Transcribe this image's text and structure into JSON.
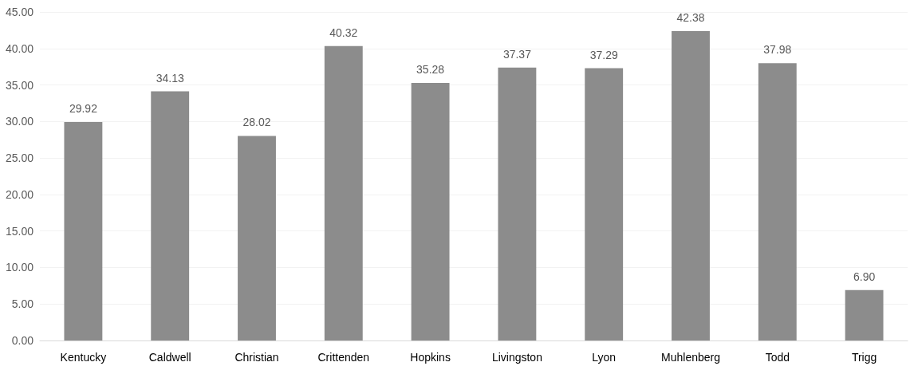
{
  "chart_data": {
    "type": "bar",
    "categories": [
      "Kentucky",
      "Caldwell",
      "Christian",
      "Crittenden",
      "Hopkins",
      "Livingston",
      "Lyon",
      "Muhlenberg",
      "Todd",
      "Trigg"
    ],
    "values": [
      29.92,
      34.13,
      28.02,
      40.32,
      35.28,
      37.37,
      37.29,
      42.38,
      37.98,
      6.9
    ],
    "value_labels": [
      "29.92",
      "34.13",
      "28.02",
      "40.32",
      "35.28",
      "37.37",
      "37.29",
      "42.38",
      "37.98",
      "6.90"
    ],
    "color": "#8c8c8c",
    "ylim": [
      0,
      45
    ],
    "yticks": [
      {
        "value": 0,
        "label": "0.00"
      },
      {
        "value": 5,
        "label": "5.00"
      },
      {
        "value": 10,
        "label": "10.00"
      },
      {
        "value": 15,
        "label": "15.00"
      },
      {
        "value": 20,
        "label": "20.00"
      },
      {
        "value": 25,
        "label": "25.00"
      },
      {
        "value": 30,
        "label": "30.00"
      },
      {
        "value": 35,
        "label": "35.00"
      },
      {
        "value": 40,
        "label": "40.00"
      },
      {
        "value": 45,
        "label": "45.00"
      }
    ],
    "grid": "y"
  }
}
